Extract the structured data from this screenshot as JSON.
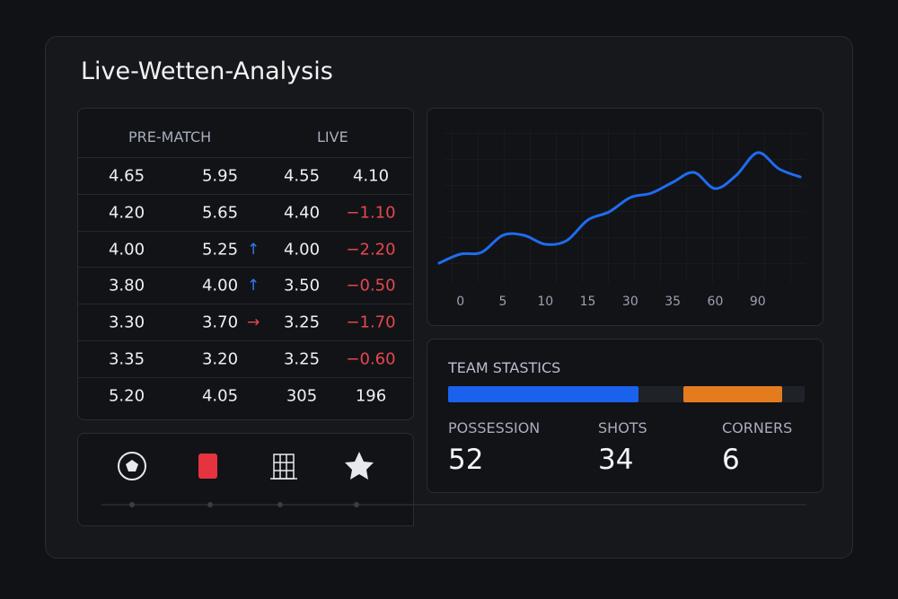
{
  "title": "Live-Wetten-Analysis",
  "odds_table": {
    "headers": [
      "PRE-MATCH",
      "LIVE"
    ],
    "rows": [
      [
        "4.65",
        "5.95",
        "4.55",
        "4.10"
      ],
      [
        "4.20",
        "5.65",
        "4.40",
        "−1.10"
      ],
      [
        "4.00",
        "5.25",
        "4.00",
        "−2.20"
      ],
      [
        "3.80",
        "4.00",
        "3.50",
        "−0.50"
      ],
      [
        "3.30",
        "3.70",
        "3.25",
        "−1.70"
      ],
      [
        "3.35",
        "3.20",
        "3.25",
        "−0.60"
      ],
      [
        "5.20",
        "4.05",
        "305",
        "196"
      ]
    ]
  },
  "chart_data": {
    "type": "line",
    "categories": [
      null,
      "0",
      null,
      "5",
      null,
      "10",
      null,
      "15",
      null,
      "30",
      null,
      "35",
      null,
      "60",
      null,
      "90",
      null,
      null
    ],
    "values": [
      17,
      27,
      29,
      48,
      48,
      38,
      42,
      65,
      74,
      90,
      95,
      107,
      118,
      100,
      115,
      140,
      122,
      113
    ],
    "color": "#1f6cf0",
    "ylim": [
      0,
      150
    ]
  },
  "team_stats": {
    "title": "TEAM STASTICS",
    "items": [
      {
        "label": "POSSESSION",
        "value": 52
      },
      {
        "label": "SHOTS",
        "value": 34
      },
      {
        "label": "CORNERS",
        "value": 6
      }
    ]
  }
}
